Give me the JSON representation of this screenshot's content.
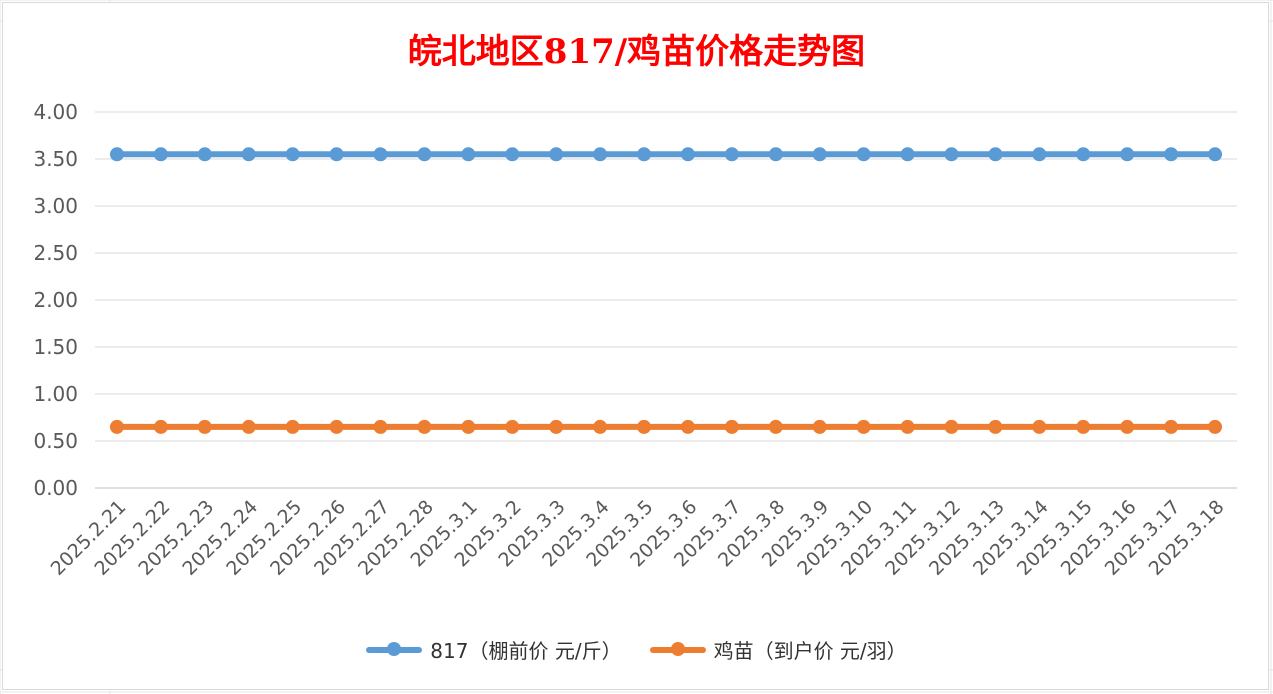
{
  "chart_data": {
    "type": "line",
    "title": "皖北地区817/鸡苗价格走势图",
    "categories": [
      "2025.2.21",
      "2025.2.22",
      "2025.2.23",
      "2025.2.24",
      "2025.2.25",
      "2025.2.26",
      "2025.2.27",
      "2025.2.28",
      "2025.3.1",
      "2025.3.2",
      "2025.3.3",
      "2025.3.4",
      "2025.3.5",
      "2025.3.6",
      "2025.3.7",
      "2025.3.8",
      "2025.3.9",
      "2025.3.10",
      "2025.3.11",
      "2025.3.12",
      "2025.3.13",
      "2025.3.14",
      "2025.3.15",
      "2025.3.16",
      "2025.3.17",
      "2025.3.18"
    ],
    "series": [
      {
        "name": "817（棚前价 元/斤）",
        "color": "#5b9bd5",
        "values": [
          3.55,
          3.55,
          3.55,
          3.55,
          3.55,
          3.55,
          3.55,
          3.55,
          3.55,
          3.55,
          3.55,
          3.55,
          3.55,
          3.55,
          3.55,
          3.55,
          3.55,
          3.55,
          3.55,
          3.55,
          3.55,
          3.55,
          3.55,
          3.55,
          3.55,
          3.55
        ]
      },
      {
        "name": "鸡苗（到户价 元/羽）",
        "color": "#ed7d31",
        "values": [
          0.65,
          0.65,
          0.65,
          0.65,
          0.65,
          0.65,
          0.65,
          0.65,
          0.65,
          0.65,
          0.65,
          0.65,
          0.65,
          0.65,
          0.65,
          0.65,
          0.65,
          0.65,
          0.65,
          0.65,
          0.65,
          0.65,
          0.65,
          0.65,
          0.65,
          0.65
        ]
      }
    ],
    "yticks": [
      "0.00",
      "0.50",
      "1.00",
      "1.50",
      "2.00",
      "2.50",
      "3.00",
      "3.50",
      "4.00"
    ],
    "ylim": [
      0,
      4
    ],
    "grid": true,
    "legend_position": "bottom"
  }
}
